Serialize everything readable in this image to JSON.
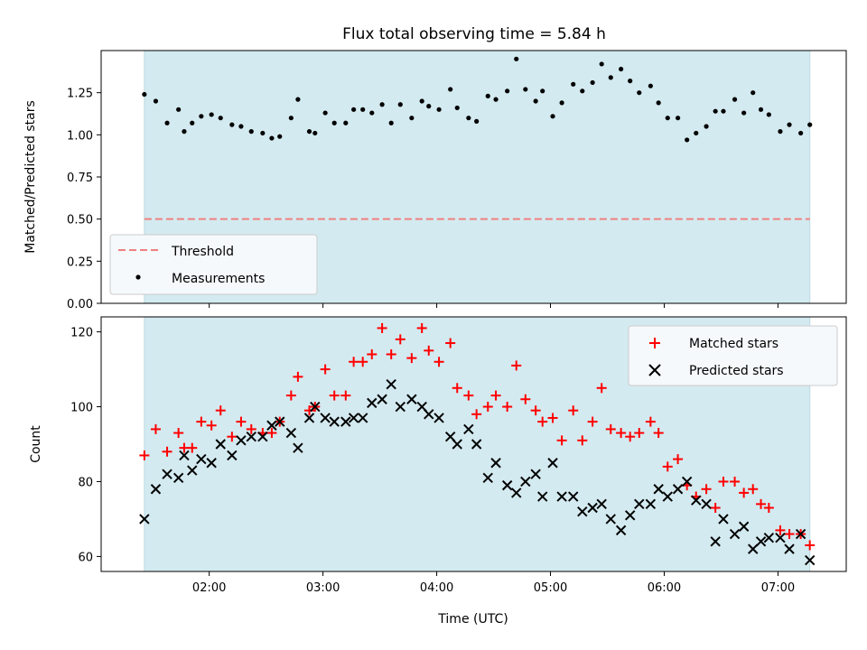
{
  "chart_data": [
    {
      "type": "scatter",
      "title": "Flux total observing time = 5.84 h",
      "xlabel": "",
      "ylabel": "Matched/Predicted stars",
      "ylim": [
        0,
        1.5
      ],
      "yticks": [
        "0.00",
        "0.25",
        "0.50",
        "0.75",
        "1.00",
        "1.25"
      ],
      "xlim_hours": [
        1.05,
        7.6
      ],
      "shaded_span_hours": [
        1.43,
        7.28
      ],
      "shade_color": "#d3eaf0",
      "threshold": {
        "name": "Threshold",
        "value": 0.5,
        "color": "#f08080"
      },
      "legend": {
        "position": "lower-left",
        "entries": [
          "Threshold",
          "Measurements"
        ]
      },
      "series": [
        {
          "name": "Measurements",
          "color": "#000000",
          "x": [
            1.43,
            1.53,
            1.63,
            1.73,
            1.78,
            1.85,
            1.93,
            2.02,
            2.1,
            2.2,
            2.28,
            2.37,
            2.47,
            2.55,
            2.62,
            2.72,
            2.78,
            2.88,
            2.93,
            3.02,
            3.1,
            3.2,
            3.27,
            3.35,
            3.43,
            3.52,
            3.6,
            3.68,
            3.78,
            3.87,
            3.93,
            4.02,
            4.12,
            4.18,
            4.28,
            4.35,
            4.45,
            4.52,
            4.62,
            4.7,
            4.78,
            4.87,
            4.93,
            5.02,
            5.1,
            5.2,
            5.28,
            5.37,
            5.45,
            5.53,
            5.62,
            5.7,
            5.78,
            5.88,
            5.95,
            6.03,
            6.12,
            6.2,
            6.28,
            6.37,
            6.45,
            6.52,
            6.62,
            6.7,
            6.78,
            6.85,
            6.92,
            7.02,
            7.1,
            7.2,
            7.28
          ],
          "y": [
            1.24,
            1.2,
            1.07,
            1.15,
            1.02,
            1.07,
            1.11,
            1.12,
            1.1,
            1.06,
            1.05,
            1.02,
            1.01,
            0.98,
            0.99,
            1.1,
            1.21,
            1.02,
            1.01,
            1.13,
            1.07,
            1.07,
            1.15,
            1.15,
            1.13,
            1.18,
            1.07,
            1.18,
            1.1,
            1.2,
            1.17,
            1.15,
            1.27,
            1.16,
            1.1,
            1.08,
            1.23,
            1.21,
            1.26,
            1.45,
            1.27,
            1.2,
            1.26,
            1.11,
            1.19,
            1.3,
            1.26,
            1.31,
            1.42,
            1.34,
            1.39,
            1.32,
            1.25,
            1.29,
            1.19,
            1.1,
            1.1,
            0.97,
            1.01,
            1.05,
            1.14,
            1.14,
            1.21,
            1.13,
            1.25,
            1.15,
            1.12,
            1.02,
            1.06,
            1.01,
            1.06
          ]
        }
      ]
    },
    {
      "type": "scatter",
      "title": "",
      "xlabel": "Time (UTC)",
      "ylabel": "Count",
      "ylim": [
        56,
        124
      ],
      "yticks": [
        "60",
        "80",
        "100",
        "120"
      ],
      "xticks": [
        "02:00",
        "03:00",
        "04:00",
        "05:00",
        "06:00",
        "07:00"
      ],
      "xlim_hours": [
        1.05,
        7.6
      ],
      "shaded_span_hours": [
        1.43,
        7.28
      ],
      "shade_color": "#d3eaf0",
      "legend": {
        "position": "upper-right",
        "entries": [
          "Matched stars",
          "Predicted stars"
        ]
      },
      "series": [
        {
          "name": "Matched stars",
          "marker": "plus",
          "color": "#ff0000",
          "x": [
            1.43,
            1.53,
            1.63,
            1.73,
            1.78,
            1.85,
            1.93,
            2.02,
            2.1,
            2.2,
            2.28,
            2.37,
            2.47,
            2.55,
            2.62,
            2.72,
            2.78,
            2.88,
            2.93,
            3.02,
            3.1,
            3.2,
            3.27,
            3.35,
            3.43,
            3.52,
            3.6,
            3.68,
            3.78,
            3.87,
            3.93,
            4.02,
            4.12,
            4.18,
            4.28,
            4.35,
            4.45,
            4.52,
            4.62,
            4.7,
            4.78,
            4.87,
            4.93,
            5.02,
            5.1,
            5.2,
            5.28,
            5.37,
            5.45,
            5.53,
            5.62,
            5.7,
            5.78,
            5.88,
            5.95,
            6.03,
            6.12,
            6.2,
            6.28,
            6.37,
            6.45,
            6.52,
            6.62,
            6.7,
            6.78,
            6.85,
            6.92,
            7.02,
            7.1,
            7.2,
            7.28
          ],
          "y": [
            87,
            94,
            88,
            93,
            89,
            89,
            96,
            95,
            99,
            92,
            96,
            94,
            93,
            93,
            96,
            103,
            108,
            99,
            100,
            110,
            103,
            103,
            112,
            112,
            114,
            121,
            114,
            118,
            113,
            121,
            115,
            112,
            117,
            105,
            103,
            98,
            100,
            103,
            100,
            111,
            102,
            99,
            96,
            97,
            91,
            99,
            91,
            96,
            105,
            94,
            93,
            92,
            93,
            96,
            93,
            84,
            86,
            79,
            76,
            78,
            73,
            80,
            80,
            77,
            78,
            74,
            73,
            67,
            66,
            66,
            63
          ]
        },
        {
          "name": "Predicted stars",
          "marker": "x",
          "color": "#000000",
          "x": [
            1.43,
            1.53,
            1.63,
            1.73,
            1.78,
            1.85,
            1.93,
            2.02,
            2.1,
            2.2,
            2.28,
            2.37,
            2.47,
            2.55,
            2.62,
            2.72,
            2.78,
            2.88,
            2.93,
            3.02,
            3.1,
            3.2,
            3.27,
            3.35,
            3.43,
            3.52,
            3.6,
            3.68,
            3.78,
            3.87,
            3.93,
            4.02,
            4.12,
            4.18,
            4.28,
            4.35,
            4.45,
            4.52,
            4.62,
            4.7,
            4.78,
            4.87,
            4.93,
            5.02,
            5.1,
            5.2,
            5.28,
            5.37,
            5.45,
            5.53,
            5.62,
            5.7,
            5.78,
            5.88,
            5.95,
            6.03,
            6.12,
            6.2,
            6.28,
            6.37,
            6.45,
            6.52,
            6.62,
            6.7,
            6.78,
            6.85,
            6.92,
            7.02,
            7.1,
            7.2,
            7.28
          ],
          "y": [
            70,
            78,
            82,
            81,
            87,
            83,
            86,
            85,
            90,
            87,
            91,
            92,
            92,
            95,
            96,
            93,
            89,
            97,
            100,
            97,
            96,
            96,
            97,
            97,
            101,
            102,
            106,
            100,
            102,
            100,
            98,
            97,
            92,
            90,
            94,
            90,
            81,
            85,
            79,
            77,
            80,
            82,
            76,
            85,
            76,
            76,
            72,
            73,
            74,
            70,
            67,
            71,
            74,
            74,
            78,
            76,
            78,
            80,
            75,
            74,
            64,
            70,
            66,
            68,
            62,
            64,
            65,
            65,
            62,
            66,
            59
          ]
        }
      ]
    }
  ]
}
